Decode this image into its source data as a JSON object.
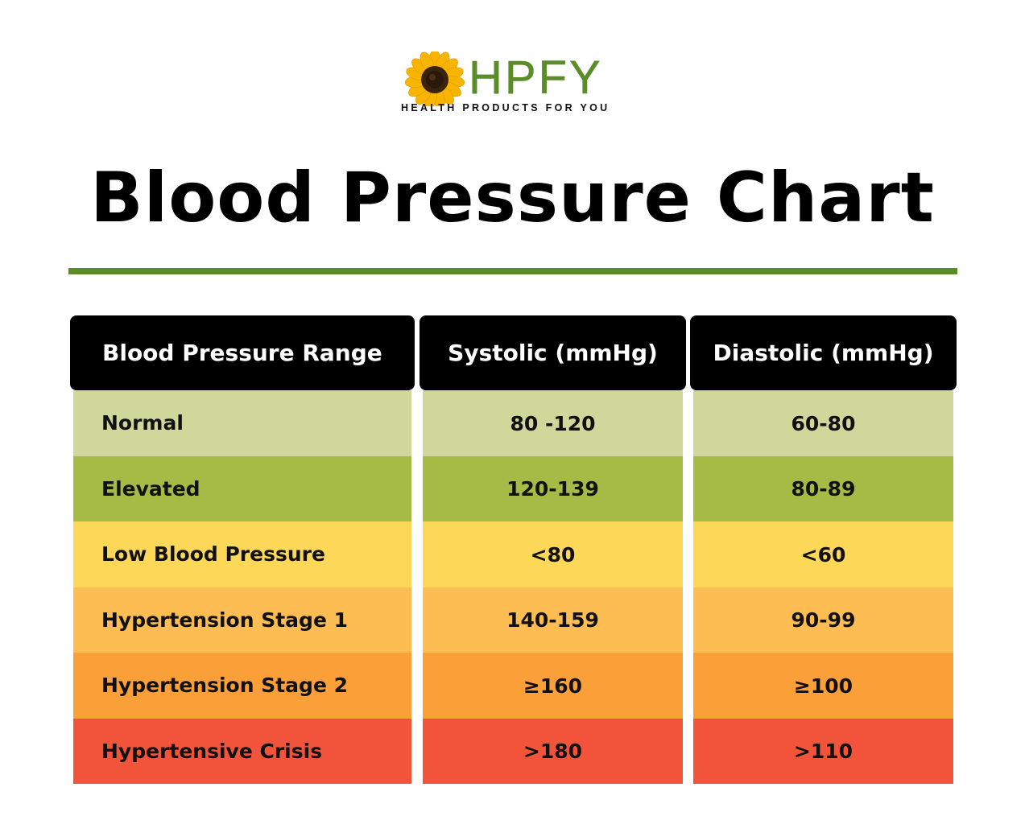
{
  "logo": {
    "brand": "HPFY",
    "tagline": "HEALTH PRODUCTS FOR YOU"
  },
  "title": "Blood Pressure Chart",
  "colors": {
    "accent": "#5b8c2a",
    "header_bg": "#000000",
    "header_text": "#ffffff"
  },
  "table": {
    "headers": [
      "Blood Pressure Range",
      "Systolic (mmHg)",
      "Diastolic (mmHg)"
    ],
    "rows": [
      {
        "range": "Normal",
        "systolic": "80 -120",
        "diastolic": "60-80",
        "color": "#cfd89a"
      },
      {
        "range": "Elevated",
        "systolic": "120-139",
        "diastolic": "80-89",
        "color": "#a6bb45"
      },
      {
        "range": "Low Blood Pressure",
        "systolic": "<80",
        "diastolic": "<60",
        "color": "#fdd858"
      },
      {
        "range": "Hypertension Stage 1",
        "systolic": "140-159",
        "diastolic": "90-99",
        "color": "#fdbd52"
      },
      {
        "range": "Hypertension Stage 2",
        "systolic": "≥160",
        "diastolic": "≥100",
        "color": "#fba038"
      },
      {
        "range": "Hypertensive Crisis",
        "systolic": ">180",
        "diastolic": ">110",
        "color": "#f2543b"
      }
    ]
  }
}
